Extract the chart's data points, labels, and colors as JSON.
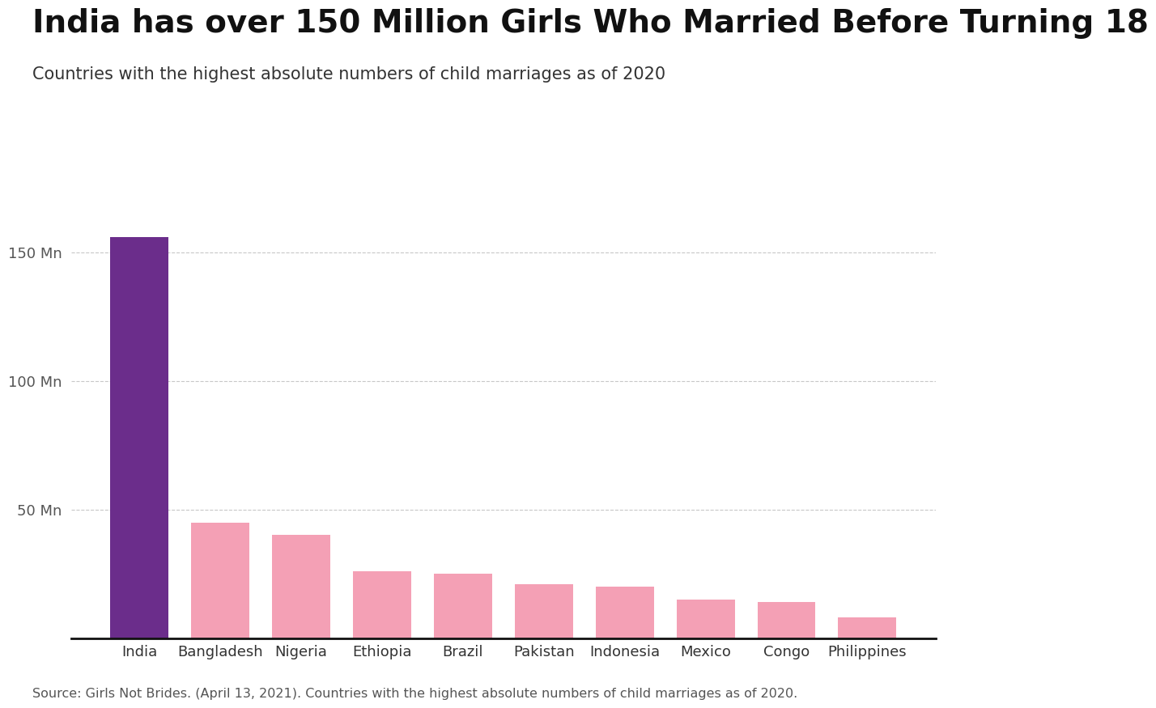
{
  "title": "India has over 150 Million Girls Who Married Before Turning 18",
  "subtitle": "Countries with the highest absolute numbers of child marriages as of 2020",
  "source": "Source: Girls Not Brides. (April 13, 2021). Countries with the highest absolute numbers of child marriages as of 2020.",
  "categories": [
    "India",
    "Bangladesh",
    "Nigeria",
    "Ethiopia",
    "Brazil",
    "Pakistan",
    "Indonesia",
    "Mexico",
    "Congo",
    "Philippines"
  ],
  "values": [
    156,
    45,
    40,
    26,
    25,
    21,
    20,
    15,
    14,
    8
  ],
  "bar_colors": [
    "#6B2D8B",
    "#F4A0B5",
    "#F4A0B5",
    "#F4A0B5",
    "#F4A0B5",
    "#F4A0B5",
    "#F4A0B5",
    "#F4A0B5",
    "#F4A0B5",
    "#F4A0B5"
  ],
  "yticks": [
    50,
    100,
    150
  ],
  "ytick_labels": [
    "50 Mn",
    "100 Mn",
    "150 Mn"
  ],
  "ylim": [
    0,
    170
  ],
  "background_color": "#ffffff",
  "grid_color": "#c8c8c8",
  "title_fontsize": 28,
  "subtitle_fontsize": 15,
  "tick_fontsize": 13,
  "source_fontsize": 11.5
}
